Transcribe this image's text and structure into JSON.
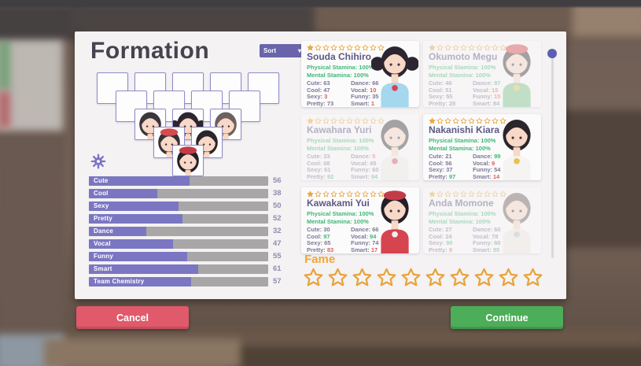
{
  "panel": {
    "title": "Formation",
    "sort_label": "Sort",
    "fame_label": "Fame",
    "fame": {
      "stars_filled": 0,
      "stars_total": 10
    }
  },
  "team_stats": [
    {
      "label": "Cute",
      "value": 56
    },
    {
      "label": "Cool",
      "value": 38
    },
    {
      "label": "Sexy",
      "value": 50
    },
    {
      "label": "Pretty",
      "value": 52
    },
    {
      "label": "Dance",
      "value": 32
    },
    {
      "label": "Vocal",
      "value": 47
    },
    {
      "label": "Funny",
      "value": 55
    },
    {
      "label": "Smart",
      "value": 61
    },
    {
      "label": "Team Chemistry",
      "value": 57
    }
  ],
  "cards": [
    {
      "name": "Souda Chihiro",
      "faded": false,
      "stars_filled": 1,
      "stars_total": 10,
      "ps_label": "Physical Stamina:",
      "ps_value": "100%",
      "ms_label": "Mental Stamina:",
      "ms_value": "100%",
      "stats": [
        {
          "label": "Cute:",
          "value": 63,
          "color": "normal"
        },
        {
          "label": "Cool:",
          "value": 47,
          "color": "normal"
        },
        {
          "label": "Sexy:",
          "value": 3,
          "color": "red"
        },
        {
          "label": "Pretty:",
          "value": 73,
          "color": "normal"
        },
        {
          "label": "Dance:",
          "value": 66,
          "color": "normal"
        },
        {
          "label": "Vocal:",
          "value": 10,
          "color": "red"
        },
        {
          "label": "Funny:",
          "value": 35,
          "color": "normal"
        },
        {
          "label": "Smart:",
          "value": 1,
          "color": "red"
        }
      ],
      "avatar": {
        "hair": "#2d2530",
        "skin": "#f8d8c6",
        "top": "#a5d7ef",
        "accent": "#d64454",
        "tails": true
      }
    },
    {
      "name": "Okumoto Megu",
      "faded": true,
      "stars_filled": 1,
      "stars_total": 10,
      "ps_label": "Physical Stamina:",
      "ps_value": "100%",
      "ms_label": "Mental Stamina:",
      "ms_value": "100%",
      "stats": [
        {
          "label": "Cute:",
          "value": 46,
          "color": "normal"
        },
        {
          "label": "Cool:",
          "value": 51,
          "color": "normal"
        },
        {
          "label": "Sexy:",
          "value": 55,
          "color": "normal"
        },
        {
          "label": "Pretty:",
          "value": 28,
          "color": "normal"
        },
        {
          "label": "Dance:",
          "value": 97,
          "color": "green"
        },
        {
          "label": "Vocal:",
          "value": 15,
          "color": "red"
        },
        {
          "label": "Funny:",
          "value": 15,
          "color": "red"
        },
        {
          "label": "Smart:",
          "value": 84,
          "color": "normal"
        }
      ],
      "avatar": {
        "hair": "#3a3138",
        "skin": "#f8d8c6",
        "top": "#7cc78b",
        "accent": "#e8c14f",
        "hat": "#d6494f"
      }
    },
    {
      "name": "Kawahara Yuri",
      "faded": true,
      "stars_filled": 1,
      "stars_total": 10,
      "ps_label": "Physical Stamina:",
      "ps_value": "100%",
      "ms_label": "Mental Stamina:",
      "ms_value": "100%",
      "stats": [
        {
          "label": "Cute:",
          "value": 33,
          "color": "normal"
        },
        {
          "label": "Cool:",
          "value": 68,
          "color": "normal"
        },
        {
          "label": "Sexy:",
          "value": 61,
          "color": "normal"
        },
        {
          "label": "Pretty:",
          "value": 92,
          "color": "green"
        },
        {
          "label": "Dance:",
          "value": 5,
          "color": "red"
        },
        {
          "label": "Vocal:",
          "value": 45,
          "color": "normal"
        },
        {
          "label": "Funny:",
          "value": 60,
          "color": "normal"
        },
        {
          "label": "Smart:",
          "value": 94,
          "color": "green"
        }
      ],
      "avatar": {
        "hair": "#3b353c",
        "skin": "#f8d8c6",
        "top": "#f0eeec",
        "accent": "#d4566a"
      }
    },
    {
      "name": "Nakanishi Kiara",
      "faded": false,
      "stars_filled": 1,
      "stars_total": 10,
      "ps_label": "Physical Stamina:",
      "ps_value": "100%",
      "ms_label": "Mental Stamina:",
      "ms_value": "100%",
      "stats": [
        {
          "label": "Cute:",
          "value": 21,
          "color": "normal"
        },
        {
          "label": "Cool:",
          "value": 56,
          "color": "normal"
        },
        {
          "label": "Sexy:",
          "value": 37,
          "color": "normal"
        },
        {
          "label": "Pretty:",
          "value": 97,
          "color": "green"
        },
        {
          "label": "Dance:",
          "value": 99,
          "color": "green"
        },
        {
          "label": "Vocal:",
          "value": 9,
          "color": "red"
        },
        {
          "label": "Funny:",
          "value": 54,
          "color": "normal"
        },
        {
          "label": "Smart:",
          "value": 14,
          "color": "red"
        }
      ],
      "avatar": {
        "hair": "#2b252c",
        "skin": "#f8d8c6",
        "top": "#f6f4f2",
        "accent": "#e8c14f"
      }
    },
    {
      "name": "Kawakami Yui",
      "faded": false,
      "stars_filled": 1,
      "stars_total": 10,
      "ps_label": "Physical Stamina:",
      "ps_value": "100%",
      "ms_label": "Mental Stamina:",
      "ms_value": "100%",
      "stats": [
        {
          "label": "Cute:",
          "value": 30,
          "color": "normal"
        },
        {
          "label": "Cool:",
          "value": 97,
          "color": "green"
        },
        {
          "label": "Sexy:",
          "value": 65,
          "color": "normal"
        },
        {
          "label": "Pretty:",
          "value": 83,
          "color": "red"
        },
        {
          "label": "Dance:",
          "value": 66,
          "color": "normal"
        },
        {
          "label": "Vocal:",
          "value": 94,
          "color": "green"
        },
        {
          "label": "Funny:",
          "value": 74,
          "color": "normal"
        },
        {
          "label": "Smart:",
          "value": 17,
          "color": "red"
        }
      ],
      "avatar": {
        "hair": "#251f27",
        "skin": "#f8d8c6",
        "top": "#d64450",
        "accent": "#f4f0ec",
        "hat": "#c43b48"
      }
    },
    {
      "name": "Anda Momone",
      "faded": true,
      "stars_filled": 1,
      "stars_total": 10,
      "ps_label": "Physical Stamina:",
      "ps_value": "100%",
      "ms_label": "Mental Stamina:",
      "ms_value": "100%",
      "stats": [
        {
          "label": "Cute:",
          "value": 27,
          "color": "normal"
        },
        {
          "label": "Cool:",
          "value": 24,
          "color": "normal"
        },
        {
          "label": "Sexy:",
          "value": 90,
          "color": "green"
        },
        {
          "label": "Pretty:",
          "value": 9,
          "color": "red"
        },
        {
          "label": "Dance:",
          "value": 60,
          "color": "normal"
        },
        {
          "label": "Vocal:",
          "value": 78,
          "color": "normal"
        },
        {
          "label": "Funny:",
          "value": 60,
          "color": "normal"
        },
        {
          "label": "Smart:",
          "value": 95,
          "color": "green"
        }
      ],
      "avatar": {
        "hair": "#6d615f",
        "skin": "#f8d8c6",
        "top": "#eeeae2",
        "accent": "#b9c3c9"
      }
    }
  ],
  "formation": {
    "rows": [
      5,
      4,
      3,
      2,
      1
    ],
    "filled": [
      {
        "row": 2,
        "col": 0,
        "avatar_card": 2
      },
      {
        "row": 2,
        "col": 1,
        "avatar_card": 0
      },
      {
        "row": 2,
        "col": 2,
        "avatar_card": 5
      },
      {
        "row": 3,
        "col": 0,
        "avatar_card": 1
      },
      {
        "row": 3,
        "col": 1,
        "avatar_card": 3
      },
      {
        "row": 4,
        "col": 0,
        "avatar_card": 4
      }
    ]
  },
  "buttons": {
    "cancel": "Cancel",
    "continue": "Continue"
  },
  "icons": {
    "sort_chevron": "chevron-down-icon",
    "gear": "gear-icon",
    "star": "star-icon"
  },
  "colors": {
    "stat_normal": "#7b7898",
    "stat_red": "#e25b5b",
    "stat_green": "#3cb878",
    "accent_purple": "#6a64aa",
    "bar_fill": "#7b76c2",
    "star_fill": "#f2a93b",
    "star_stroke": "#e8a33d",
    "fame_orange": "#f2a53c",
    "cancel_red": "#e05a6b",
    "continue_green": "#4cae58"
  }
}
